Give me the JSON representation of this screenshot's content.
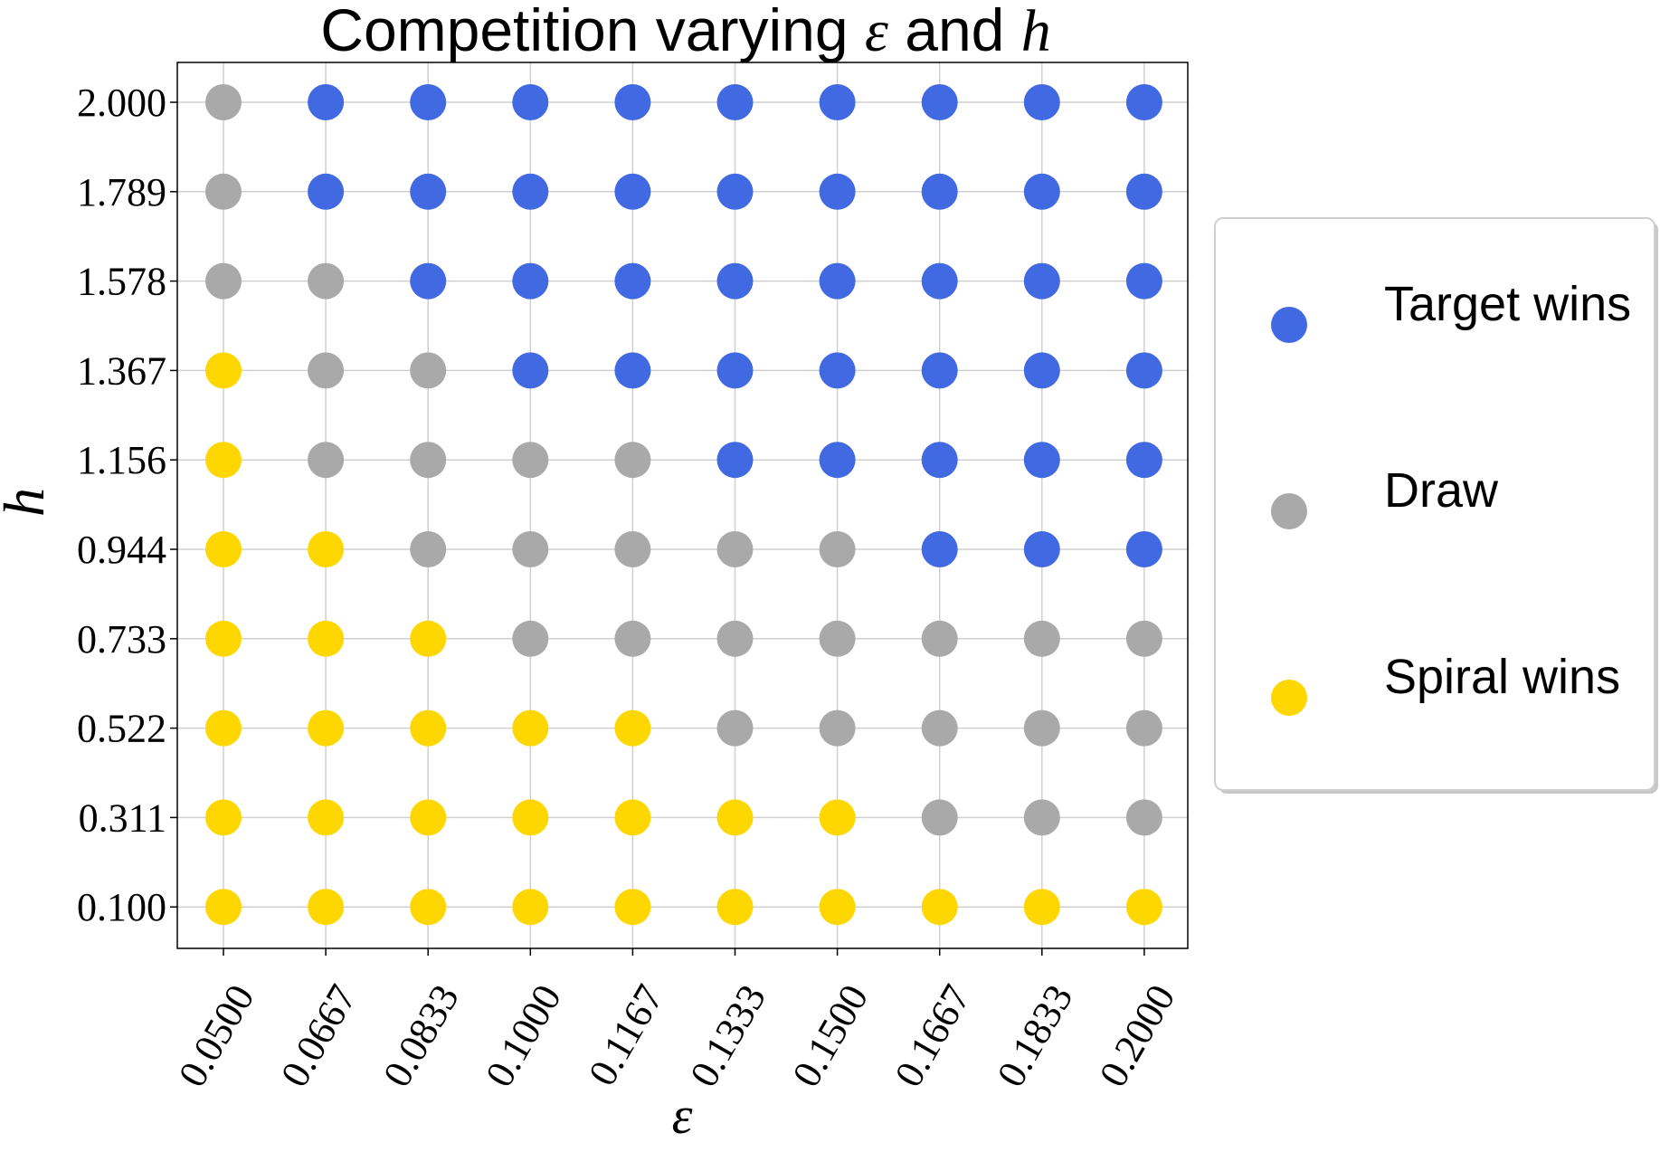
{
  "chart_data": {
    "type": "scatter",
    "title_text": "Competition varying ",
    "title_sym1": "ε",
    "title_mid": " and ",
    "title_sym2": "h",
    "xlabel": "ε",
    "ylabel": "h",
    "x_ticks": [
      "0.0500",
      "0.0667",
      "0.0833",
      "0.1000",
      "0.1167",
      "0.1333",
      "0.1500",
      "0.1667",
      "0.1833",
      "0.2000"
    ],
    "y_ticks": [
      "0.100",
      "0.311",
      "0.522",
      "0.733",
      "0.944",
      "1.156",
      "1.367",
      "1.578",
      "1.789",
      "2.000"
    ],
    "grid": true,
    "legend_position": "right",
    "outcomes": {
      "T": {
        "label": "Target wins",
        "color": "#4169e1"
      },
      "D": {
        "label": "Draw",
        "color": "#a9a9a9"
      },
      "S": {
        "label": "Spiral wins",
        "color": "#ffd700"
      }
    },
    "grid_results": [
      [
        "D",
        "T",
        "T",
        "T",
        "T",
        "T",
        "T",
        "T",
        "T",
        "T"
      ],
      [
        "D",
        "T",
        "T",
        "T",
        "T",
        "T",
        "T",
        "T",
        "T",
        "T"
      ],
      [
        "D",
        "D",
        "T",
        "T",
        "T",
        "T",
        "T",
        "T",
        "T",
        "T"
      ],
      [
        "S",
        "D",
        "D",
        "T",
        "T",
        "T",
        "T",
        "T",
        "T",
        "T"
      ],
      [
        "S",
        "D",
        "D",
        "D",
        "D",
        "T",
        "T",
        "T",
        "T",
        "T"
      ],
      [
        "S",
        "S",
        "D",
        "D",
        "D",
        "D",
        "D",
        "T",
        "T",
        "T"
      ],
      [
        "S",
        "S",
        "S",
        "D",
        "D",
        "D",
        "D",
        "D",
        "D",
        "D"
      ],
      [
        "S",
        "S",
        "S",
        "S",
        "S",
        "D",
        "D",
        "D",
        "D",
        "D"
      ],
      [
        "S",
        "S",
        "S",
        "S",
        "S",
        "S",
        "S",
        "D",
        "D",
        "D"
      ],
      [
        "S",
        "S",
        "S",
        "S",
        "S",
        "S",
        "S",
        "S",
        "S",
        "S"
      ]
    ],
    "grid_results_row_order": "top row = h 2.000, bottom row = h 0.100",
    "legend": [
      {
        "key": "T",
        "label": "Target wins"
      },
      {
        "key": "D",
        "label": "Draw"
      },
      {
        "key": "S",
        "label": "Spiral wins"
      }
    ]
  }
}
